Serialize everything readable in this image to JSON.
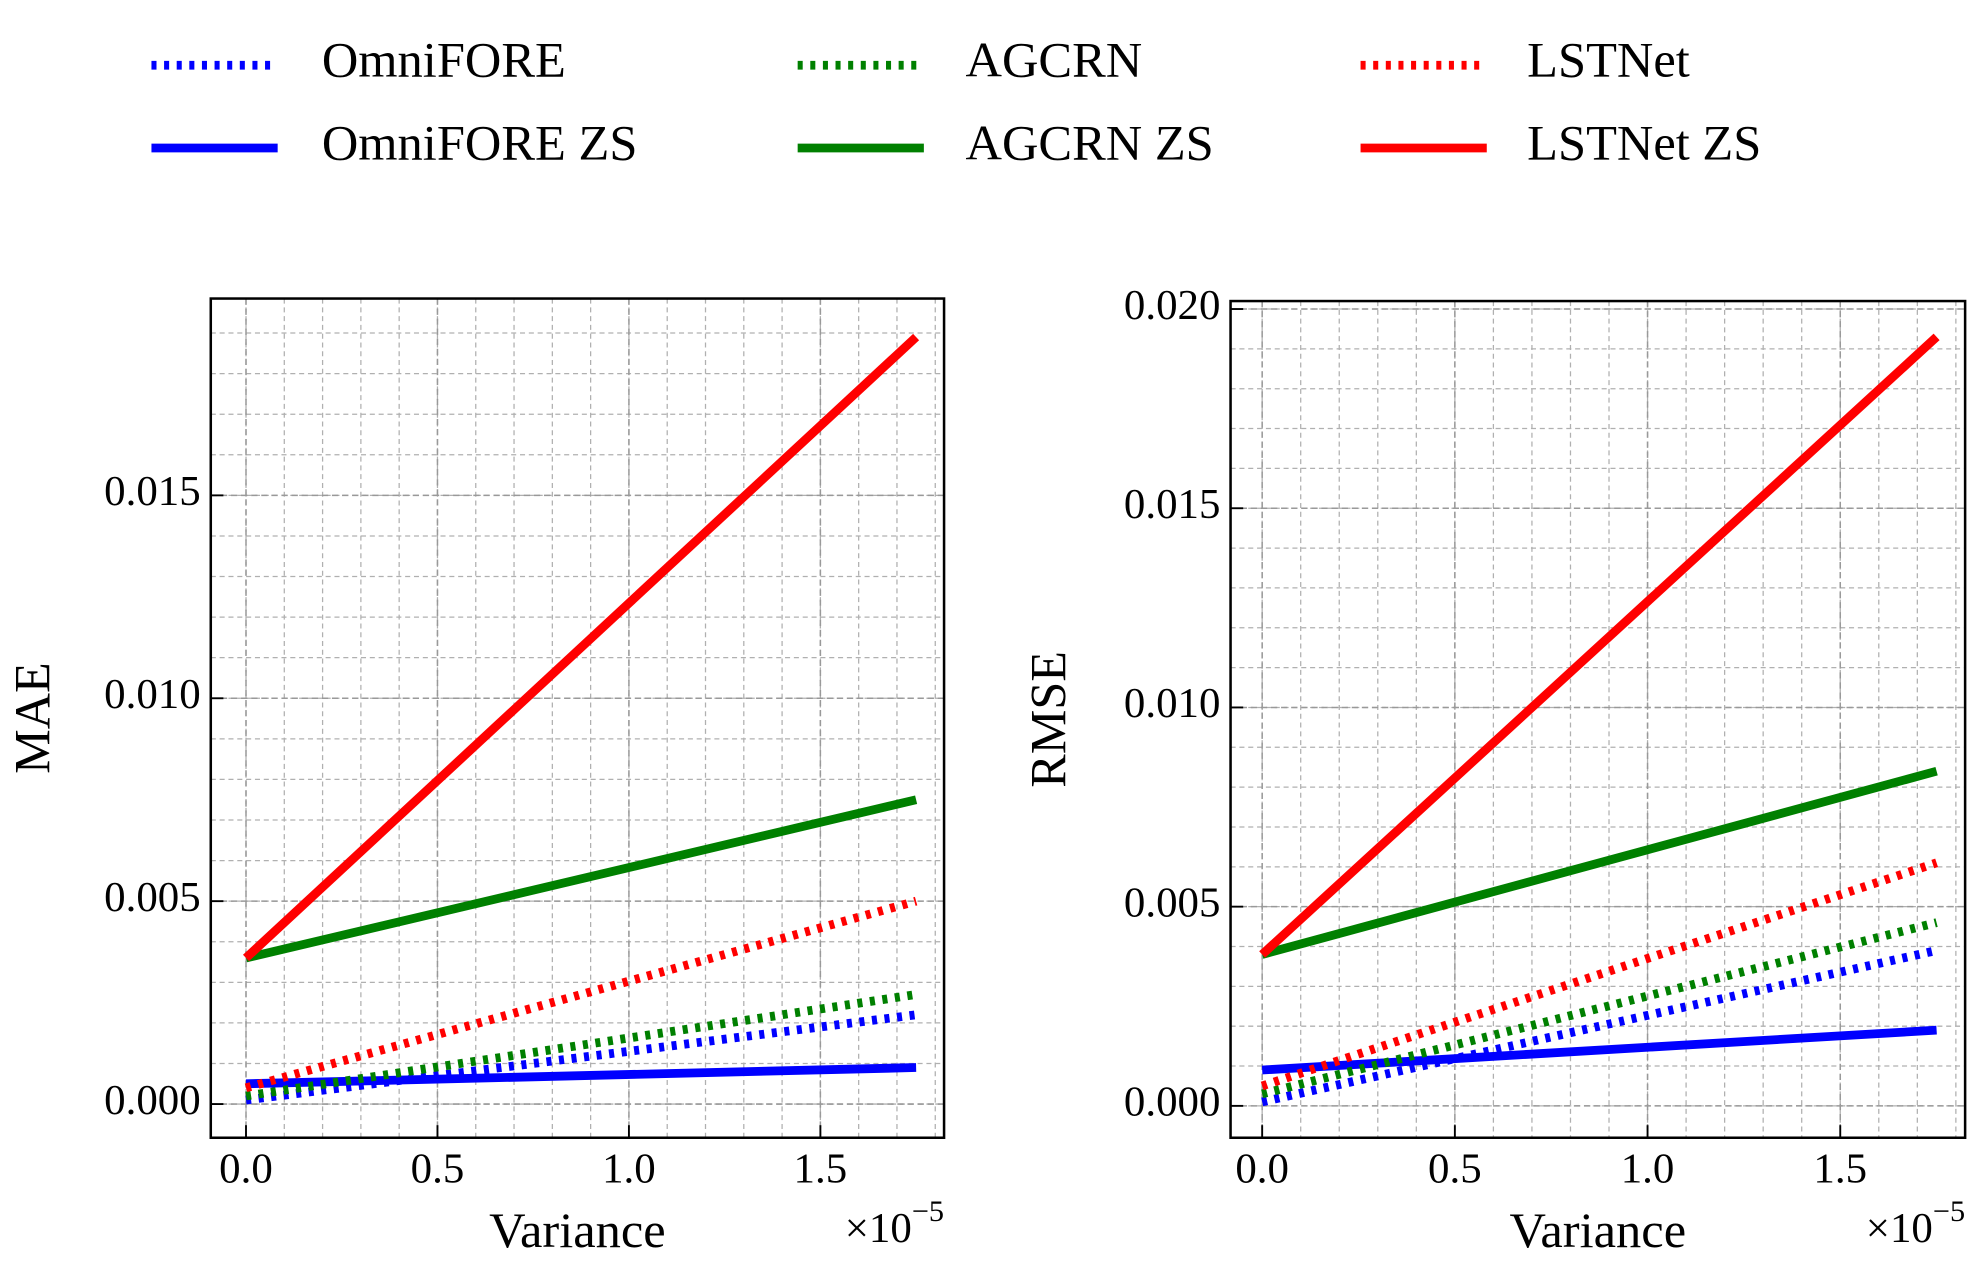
{
  "chart_data": [
    {
      "type": "line",
      "xlabel": "Variance",
      "ylabel": "MAE",
      "x_offset": {
        "base": "×10",
        "exponent": "−5"
      },
      "x": [
        0,
        1.75
      ],
      "xlim": [
        -0.092,
        1.823
      ],
      "ylim": [
        -0.00083,
        0.01985
      ],
      "xticks": [
        {
          "value": 0,
          "label": "0.0"
        },
        0.5,
        {
          "value": 1,
          "label": "1.0"
        },
        1.5
      ],
      "yticks": [
        {
          "value": 0,
          "label": "0.000"
        },
        0.005,
        {
          "value": 0.01,
          "label": "0.010"
        },
        0.015
      ],
      "grid": true,
      "series": [
        {
          "name": "OmniFORE",
          "color": "#0000ff",
          "style": "dotted",
          "values": [
            0.0001,
            0.0022
          ]
        },
        {
          "name": "OmniFORE ZS",
          "color": "#0000ff",
          "style": "solid",
          "values": [
            0.0005,
            0.0009
          ]
        },
        {
          "name": "AGCRN",
          "color": "#008000",
          "style": "dotted",
          "values": [
            0.0002,
            0.0027
          ]
        },
        {
          "name": "AGCRN ZS",
          "color": "#008000",
          "style": "solid",
          "values": [
            0.0036,
            0.0075
          ]
        },
        {
          "name": "LSTNet",
          "color": "#ff0000",
          "style": "dotted",
          "values": [
            0.0004,
            0.005
          ]
        },
        {
          "name": "LSTNet ZS",
          "color": "#ff0000",
          "style": "solid",
          "values": [
            0.0036,
            0.0189
          ]
        }
      ]
    },
    {
      "type": "line",
      "xlabel": "Variance",
      "ylabel": "RMSE",
      "x_offset": {
        "base": "×10",
        "exponent": "−5"
      },
      "x": [
        0,
        1.75
      ],
      "xlim": [
        -0.082,
        1.824
      ],
      "ylim": [
        -0.0008,
        0.0202
      ],
      "xticks": [
        {
          "value": 0,
          "label": "0.0"
        },
        0.5,
        {
          "value": 1,
          "label": "1.0"
        },
        1.5
      ],
      "yticks": [
        {
          "value": 0,
          "label": "0.000"
        },
        0.005,
        {
          "value": 0.01,
          "label": "0.010"
        },
        0.015,
        {
          "value": 0.02,
          "label": "0.020"
        }
      ],
      "grid": true,
      "series": [
        {
          "name": "OmniFORE",
          "color": "#0000ff",
          "style": "dotted",
          "values": [
            0.0001,
            0.0039
          ]
        },
        {
          "name": "OmniFORE ZS",
          "color": "#0000ff",
          "style": "solid",
          "values": [
            0.0009,
            0.0019
          ]
        },
        {
          "name": "AGCRN",
          "color": "#008000",
          "style": "dotted",
          "values": [
            0.0003,
            0.0046
          ]
        },
        {
          "name": "AGCRN ZS",
          "color": "#008000",
          "style": "solid",
          "values": [
            0.0038,
            0.0084
          ]
        },
        {
          "name": "LSTNet",
          "color": "#ff0000",
          "style": "dotted",
          "values": [
            0.0005,
            0.0061
          ]
        },
        {
          "name": "LSTNet ZS",
          "color": "#ff0000",
          "style": "solid",
          "values": [
            0.0038,
            0.0193
          ]
        }
      ]
    }
  ]
}
